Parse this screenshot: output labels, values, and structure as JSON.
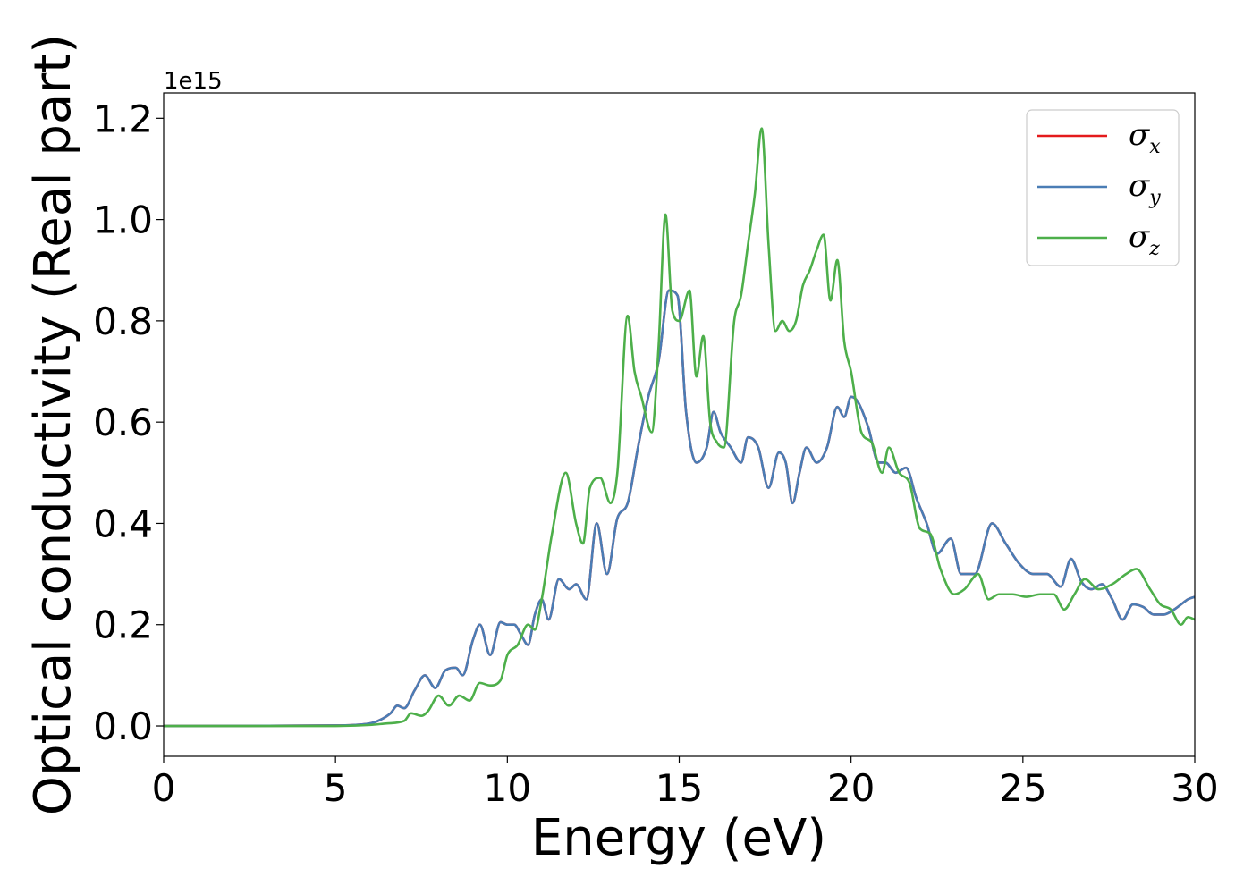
{
  "chart_data": {
    "type": "line",
    "xlabel": "Energy (eV)",
    "ylabel": "Optical conductivity (Real part)",
    "y_offset_label": "1e15",
    "xlim": [
      0,
      30
    ],
    "ylim": [
      -0.06,
      1.25
    ],
    "xticks": [
      0,
      5,
      10,
      15,
      20,
      25,
      30
    ],
    "yticks": [
      0.0,
      0.2,
      0.4,
      0.6,
      0.8,
      1.0,
      1.2
    ],
    "ytick_labels": [
      "0.0",
      "0.2",
      "0.4",
      "0.6",
      "0.8",
      "1.0",
      "1.2"
    ],
    "grid": false,
    "legend_position": "top-right",
    "series": [
      {
        "name": "σx",
        "name_base": "σ",
        "name_sub": "x",
        "color": "#e41a1c",
        "x": [
          0,
          5,
          6,
          6.3,
          6.6,
          6.8,
          7.0,
          7.3,
          7.6,
          7.9,
          8.2,
          8.5,
          8.7,
          9.0,
          9.2,
          9.5,
          9.8,
          10.0,
          10.2,
          10.4,
          10.6,
          10.8,
          11.0,
          11.2,
          11.5,
          11.8,
          12.0,
          12.3,
          12.6,
          12.9,
          13.2,
          13.5,
          13.8,
          14.1,
          14.4,
          14.7,
          14.95,
          15.2,
          15.5,
          15.8,
          16.0,
          16.2,
          16.5,
          16.8,
          17.0,
          17.3,
          17.6,
          17.9,
          18.1,
          18.3,
          18.5,
          18.7,
          19.0,
          19.3,
          19.6,
          19.8,
          20.0,
          20.2,
          20.5,
          20.8,
          21.0,
          21.3,
          21.6,
          21.9,
          22.2,
          22.5,
          22.9,
          23.2,
          23.6,
          24.1,
          24.5,
          24.9,
          25.3,
          25.7,
          26.1,
          26.4,
          26.7,
          27.0,
          27.3,
          27.6,
          27.9,
          28.2,
          28.5,
          28.8,
          29.1,
          29.4,
          29.6,
          29.8,
          30.0
        ],
        "values": [
          0,
          0.001,
          0.005,
          0.012,
          0.025,
          0.04,
          0.035,
          0.07,
          0.1,
          0.075,
          0.11,
          0.115,
          0.1,
          0.17,
          0.2,
          0.14,
          0.205,
          0.2,
          0.2,
          0.18,
          0.16,
          0.22,
          0.25,
          0.21,
          0.29,
          0.27,
          0.28,
          0.25,
          0.4,
          0.3,
          0.41,
          0.44,
          0.55,
          0.65,
          0.72,
          0.86,
          0.85,
          0.62,
          0.52,
          0.55,
          0.62,
          0.58,
          0.55,
          0.52,
          0.57,
          0.55,
          0.47,
          0.54,
          0.52,
          0.44,
          0.5,
          0.55,
          0.52,
          0.55,
          0.63,
          0.61,
          0.65,
          0.64,
          0.59,
          0.52,
          0.52,
          0.5,
          0.51,
          0.45,
          0.4,
          0.34,
          0.37,
          0.3,
          0.3,
          0.4,
          0.36,
          0.32,
          0.3,
          0.3,
          0.275,
          0.33,
          0.285,
          0.27,
          0.28,
          0.25,
          0.21,
          0.24,
          0.235,
          0.22,
          0.22,
          0.23,
          0.24,
          0.25,
          0.255
        ]
      },
      {
        "name": "σy",
        "name_base": "σ",
        "name_sub": "y",
        "color": "#4a7db5",
        "x": [
          0,
          5,
          6,
          6.3,
          6.6,
          6.8,
          7.0,
          7.3,
          7.6,
          7.9,
          8.2,
          8.5,
          8.7,
          9.0,
          9.2,
          9.5,
          9.8,
          10.0,
          10.2,
          10.4,
          10.6,
          10.8,
          11.0,
          11.2,
          11.5,
          11.8,
          12.0,
          12.3,
          12.6,
          12.9,
          13.2,
          13.5,
          13.8,
          14.1,
          14.4,
          14.7,
          14.95,
          15.2,
          15.5,
          15.8,
          16.0,
          16.2,
          16.5,
          16.8,
          17.0,
          17.3,
          17.6,
          17.9,
          18.1,
          18.3,
          18.5,
          18.7,
          19.0,
          19.3,
          19.6,
          19.8,
          20.0,
          20.2,
          20.5,
          20.8,
          21.0,
          21.3,
          21.6,
          21.9,
          22.2,
          22.5,
          22.9,
          23.2,
          23.6,
          24.1,
          24.5,
          24.9,
          25.3,
          25.7,
          26.1,
          26.4,
          26.7,
          27.0,
          27.3,
          27.6,
          27.9,
          28.2,
          28.5,
          28.8,
          29.1,
          29.4,
          29.6,
          29.8,
          30.0
        ],
        "values": [
          0,
          0.001,
          0.005,
          0.012,
          0.025,
          0.04,
          0.035,
          0.07,
          0.1,
          0.075,
          0.11,
          0.115,
          0.1,
          0.17,
          0.2,
          0.14,
          0.205,
          0.2,
          0.2,
          0.18,
          0.16,
          0.22,
          0.25,
          0.21,
          0.29,
          0.27,
          0.28,
          0.25,
          0.4,
          0.3,
          0.41,
          0.44,
          0.55,
          0.65,
          0.72,
          0.86,
          0.85,
          0.62,
          0.52,
          0.55,
          0.62,
          0.58,
          0.55,
          0.52,
          0.57,
          0.55,
          0.47,
          0.54,
          0.52,
          0.44,
          0.5,
          0.55,
          0.52,
          0.55,
          0.63,
          0.61,
          0.65,
          0.64,
          0.59,
          0.52,
          0.52,
          0.5,
          0.51,
          0.45,
          0.4,
          0.34,
          0.37,
          0.3,
          0.3,
          0.4,
          0.36,
          0.32,
          0.3,
          0.3,
          0.275,
          0.33,
          0.285,
          0.27,
          0.28,
          0.25,
          0.21,
          0.24,
          0.235,
          0.22,
          0.22,
          0.23,
          0.24,
          0.25,
          0.255
        ]
      },
      {
        "name": "σz",
        "name_base": "σ",
        "name_sub": "z",
        "color": "#4daf4a",
        "x": [
          0,
          5,
          6,
          6.5,
          7.0,
          7.2,
          7.5,
          7.7,
          8.0,
          8.3,
          8.6,
          8.9,
          9.2,
          9.5,
          9.8,
          10.0,
          10.3,
          10.6,
          10.8,
          11.0,
          11.3,
          11.7,
          12.0,
          12.2,
          12.4,
          12.7,
          13.0,
          13.2,
          13.5,
          13.7,
          13.9,
          14.2,
          14.4,
          14.6,
          14.8,
          15.0,
          15.3,
          15.5,
          15.7,
          15.9,
          16.1,
          16.3,
          16.6,
          16.8,
          17.0,
          17.2,
          17.4,
          17.6,
          17.8,
          18.0,
          18.2,
          18.4,
          18.6,
          18.8,
          19.0,
          19.2,
          19.4,
          19.6,
          19.8,
          20.0,
          20.3,
          20.6,
          20.9,
          21.1,
          21.4,
          21.7,
          22.0,
          22.3,
          22.6,
          23.0,
          23.3,
          23.7,
          24.0,
          24.3,
          24.7,
          25.1,
          25.5,
          25.9,
          26.2,
          26.5,
          26.8,
          27.2,
          27.6,
          28.0,
          28.3,
          28.7,
          29.0,
          29.3,
          29.6,
          29.8,
          30.0
        ],
        "values": [
          0,
          0.0,
          0.002,
          0.005,
          0.01,
          0.025,
          0.02,
          0.03,
          0.06,
          0.04,
          0.06,
          0.05,
          0.085,
          0.08,
          0.09,
          0.14,
          0.16,
          0.2,
          0.19,
          0.25,
          0.38,
          0.5,
          0.4,
          0.36,
          0.47,
          0.49,
          0.44,
          0.5,
          0.81,
          0.7,
          0.65,
          0.58,
          0.75,
          1.01,
          0.82,
          0.8,
          0.86,
          0.69,
          0.77,
          0.6,
          0.56,
          0.55,
          0.8,
          0.85,
          0.95,
          1.05,
          1.18,
          0.95,
          0.78,
          0.8,
          0.78,
          0.8,
          0.87,
          0.9,
          0.94,
          0.97,
          0.84,
          0.92,
          0.76,
          0.7,
          0.58,
          0.56,
          0.5,
          0.55,
          0.5,
          0.48,
          0.39,
          0.38,
          0.31,
          0.26,
          0.27,
          0.3,
          0.25,
          0.26,
          0.26,
          0.255,
          0.26,
          0.26,
          0.23,
          0.26,
          0.29,
          0.27,
          0.28,
          0.3,
          0.31,
          0.27,
          0.24,
          0.23,
          0.2,
          0.215,
          0.21
        ]
      }
    ]
  }
}
